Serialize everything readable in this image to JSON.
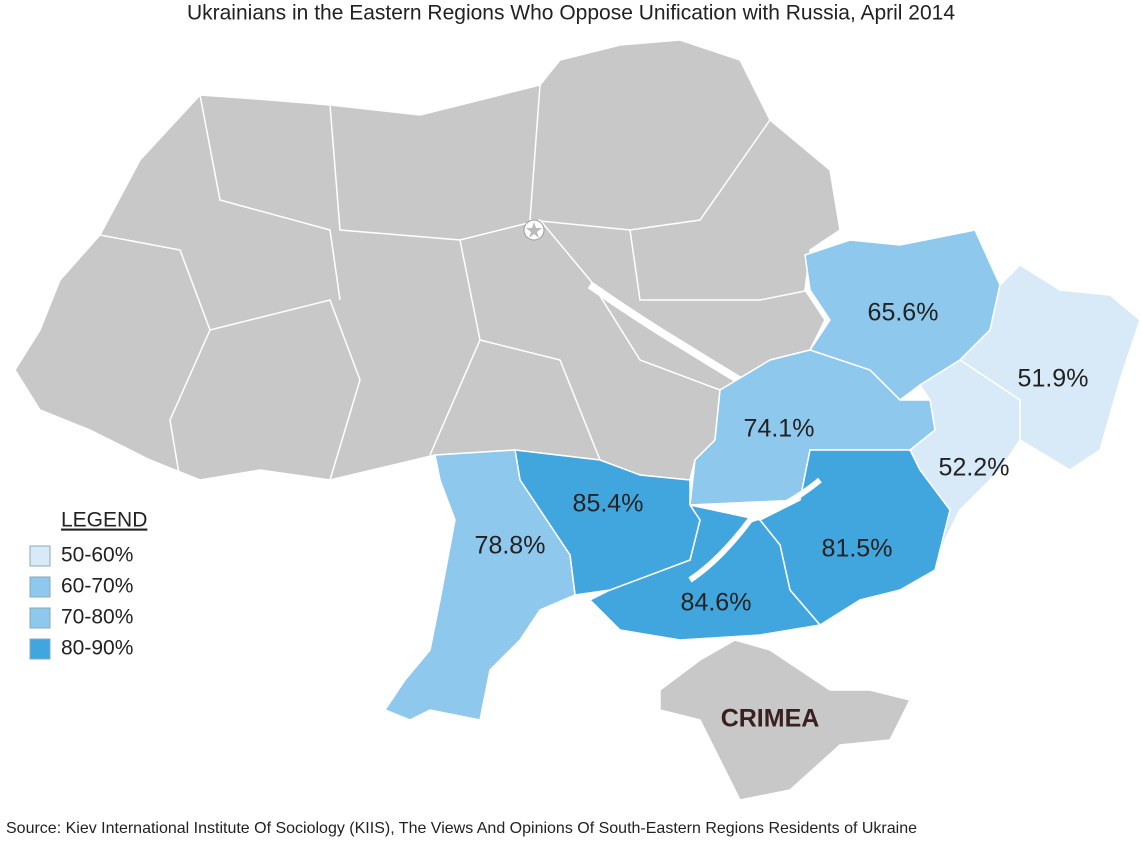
{
  "title": "Ukrainians in the Eastern Regions Who Oppose Unification with Russia, April 2014",
  "legend": {
    "title": "LEGEND",
    "items": [
      {
        "label": "50-60%",
        "color": "#d8eaf8"
      },
      {
        "label": "60-70%",
        "color": "#8ec8ec"
      },
      {
        "label": "70-80%",
        "color": "#8ec8ec"
      },
      {
        "label": "80-90%",
        "color": "#42a6de"
      }
    ]
  },
  "regions": [
    {
      "label": "65.6%",
      "color": "#8ec8ec"
    },
    {
      "label": "51.9%",
      "color": "#d8eaf8"
    },
    {
      "label": "52.2%",
      "color": "#d8eaf8"
    },
    {
      "label": "74.1%",
      "color": "#8ec8ec"
    },
    {
      "label": "81.5%",
      "color": "#42a6de"
    },
    {
      "label": "84.6%",
      "color": "#42a6de"
    },
    {
      "label": "85.4%",
      "color": "#42a6de"
    },
    {
      "label": "78.8%",
      "color": "#8ec8ec"
    }
  ],
  "crimea_label": "CRIMEA",
  "source": "Source: Kiev International Institute Of Sociology (KIIS), The Views And Opinions Of South-Eastern Regions Residents of Ukraine"
}
